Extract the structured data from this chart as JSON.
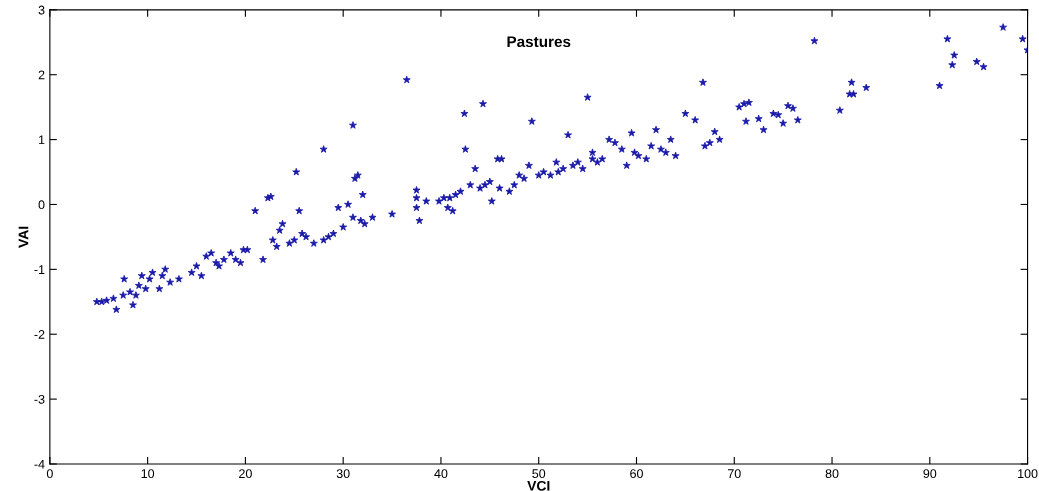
{
  "chart_data": {
    "type": "scatter",
    "title": "Pastures",
    "xlabel": "VCI",
    "ylabel": "VAI",
    "xlim": [
      0,
      100
    ],
    "ylim": [
      -4,
      3
    ],
    "xticks": [
      0,
      10,
      20,
      30,
      40,
      50,
      60,
      70,
      80,
      90,
      100
    ],
    "yticks": [
      -4,
      -3,
      -2,
      -1,
      0,
      1,
      2,
      3
    ],
    "grid": false,
    "marker": "star",
    "series": [
      {
        "color": "#1a1aa8",
        "x": [
          4.8,
          5.3,
          5.8,
          6.5,
          6.8,
          7.5,
          7.6,
          8.2,
          8.5,
          8.8,
          9.1,
          9.4,
          9.8,
          10.2,
          10.5,
          11.2,
          11.5,
          11.8,
          12.3,
          13.2,
          14.5,
          15.0,
          15.5,
          16.0,
          16.5,
          17.0,
          17.3,
          17.8,
          18.5,
          19.0,
          19.8,
          20.2,
          19.5,
          21.0,
          21.8,
          22.3,
          22.6,
          22.8,
          23.2,
          23.5,
          23.8,
          24.5,
          25.0,
          25.2,
          25.5,
          25.8,
          26.2,
          27.0,
          28.0,
          28.0,
          28.5,
          29.0,
          29.5,
          30.0,
          30.5,
          31.0,
          31.0,
          31.2,
          31.5,
          31.8,
          32.2,
          32.0,
          33.0,
          35.0,
          36.5,
          37.5,
          37.5,
          37.5,
          37.8,
          38.5,
          39.8,
          40.3,
          40.7,
          40.9,
          41.2,
          41.5,
          42.0,
          42.4,
          42.5,
          43.0,
          43.5,
          44.0,
          44.3,
          44.5,
          45.0,
          45.2,
          45.8,
          46.0,
          46.2,
          47.0,
          47.5,
          48.0,
          48.5,
          49.0,
          49.3,
          50.0,
          50.5,
          51.2,
          51.8,
          52.0,
          52.5,
          53.0,
          53.5,
          54.0,
          54.5,
          55.0,
          55.5,
          55.5,
          56.0,
          56.5,
          57.2,
          57.8,
          58.5,
          59.0,
          59.5,
          59.8,
          60.2,
          61.0,
          61.5,
          62.0,
          62.5,
          63.0,
          63.5,
          64.0,
          65.0,
          66.0,
          66.8,
          67.0,
          67.5,
          68.0,
          68.5,
          70.5,
          71.0,
          71.5,
          71.2,
          72.5,
          73.0,
          74.0,
          74.5,
          75.0,
          75.5,
          76.0,
          76.5,
          78.2,
          80.8,
          81.8,
          82.0,
          82.2,
          83.5,
          91.0,
          91.8,
          92.3,
          92.5,
          94.8,
          95.5,
          97.5,
          99.5,
          100
        ],
        "values": [
          -1.5,
          -1.5,
          -1.48,
          -1.45,
          -1.62,
          -1.4,
          -1.15,
          -1.35,
          -1.55,
          -1.4,
          -1.25,
          -1.1,
          -1.3,
          -1.15,
          -1.05,
          -1.3,
          -1.1,
          -1.0,
          -1.2,
          -1.15,
          -1.05,
          -0.95,
          -1.1,
          -0.8,
          -0.75,
          -0.9,
          -0.95,
          -0.85,
          -0.75,
          -0.85,
          -0.7,
          -0.7,
          -0.9,
          -0.1,
          -0.85,
          0.1,
          0.12,
          -0.55,
          -0.65,
          -0.4,
          -0.3,
          -0.6,
          -0.55,
          0.5,
          -0.1,
          -0.45,
          -0.5,
          -0.6,
          0.85,
          -0.55,
          -0.5,
          -0.45,
          -0.05,
          -0.35,
          0.0,
          1.22,
          -0.2,
          0.4,
          0.45,
          -0.25,
          -0.3,
          0.15,
          -0.2,
          -0.15,
          1.92,
          0.22,
          0.1,
          -0.05,
          -0.25,
          0.05,
          0.05,
          0.1,
          -0.05,
          0.1,
          -0.1,
          0.15,
          0.2,
          1.4,
          0.85,
          0.3,
          0.55,
          0.25,
          1.55,
          0.3,
          0.35,
          0.05,
          0.7,
          0.25,
          0.7,
          0.2,
          0.3,
          0.45,
          0.4,
          0.6,
          1.28,
          0.45,
          0.5,
          0.45,
          0.65,
          0.5,
          0.55,
          1.07,
          0.6,
          0.65,
          0.55,
          1.65,
          0.7,
          0.8,
          0.65,
          0.7,
          1.0,
          0.95,
          0.85,
          0.6,
          1.1,
          0.8,
          0.75,
          0.7,
          0.9,
          1.15,
          0.85,
          0.8,
          1.0,
          0.75,
          1.4,
          1.3,
          1.88,
          0.9,
          0.95,
          1.12,
          1.0,
          1.5,
          1.55,
          1.57,
          1.28,
          1.32,
          1.15,
          1.4,
          1.38,
          1.25,
          1.52,
          1.48,
          1.3,
          2.52,
          1.45,
          1.7,
          1.88,
          1.7,
          1.8,
          1.83,
          2.55,
          2.15,
          2.3,
          2.2,
          2.12,
          2.73,
          2.55,
          2.38
        ]
      }
    ]
  }
}
